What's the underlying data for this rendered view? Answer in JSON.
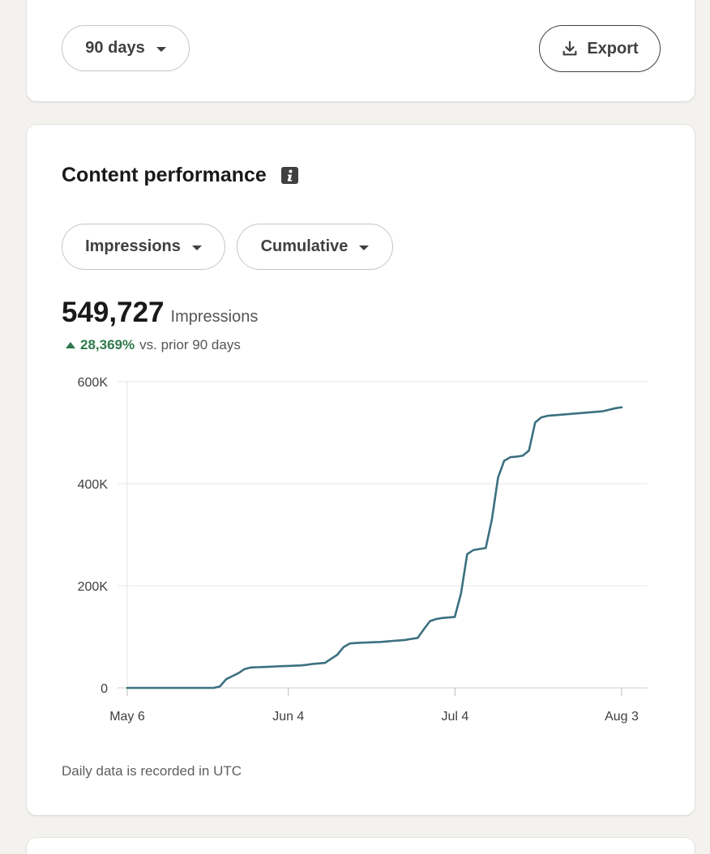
{
  "top_bar": {
    "range_label": "90 days",
    "export_label": "Export"
  },
  "content_performance": {
    "title": "Content performance",
    "metric_select": "Impressions",
    "mode_select": "Cumulative",
    "total_value": "549,727",
    "total_label": "Impressions",
    "delta_value": "28,369%",
    "delta_text": "vs. prior 90 days",
    "footnote": "Daily data is recorded in UTC"
  },
  "colors": {
    "line": "#3b7080",
    "positive": "#2f7a4a",
    "background": "#f3f2ef"
  },
  "icons": [
    "chevron-down-icon",
    "download-icon",
    "info-icon",
    "caret-up-icon"
  ],
  "chart_data": {
    "type": "line",
    "title": "",
    "xlabel": "",
    "ylabel": "",
    "x_tick_labels": [
      "May 6",
      "Jun 4",
      "Jul 4",
      "Aug 3"
    ],
    "y_tick_labels": [
      "0",
      "200K",
      "400K",
      "600K"
    ],
    "ylim": [
      0,
      600000
    ],
    "grid": true,
    "series": [
      {
        "values": [
          0,
          0,
          0,
          0,
          0,
          0,
          0,
          0,
          0,
          0,
          0,
          0,
          0,
          0,
          0,
          3000,
          17000,
          23000,
          29000,
          37000,
          40000,
          40500,
          41000,
          41500,
          42000,
          42500,
          43000,
          43500,
          44000,
          45000,
          47000,
          48000,
          49000,
          57000,
          65000,
          80000,
          87000,
          88000,
          88500,
          89000,
          89500,
          90000,
          91000,
          92000,
          93000,
          94000,
          96000,
          98000,
          115000,
          131000,
          135000,
          137000,
          138000,
          139000,
          185000,
          262000,
          270000,
          272000,
          274000,
          330000,
          412000,
          445000,
          452000,
          453000,
          455000,
          465000,
          520000,
          530000,
          533000,
          534000,
          535000,
          536000,
          537000,
          538000,
          539000,
          540000,
          541000,
          542000,
          545000,
          548000,
          549727
        ]
      }
    ]
  }
}
